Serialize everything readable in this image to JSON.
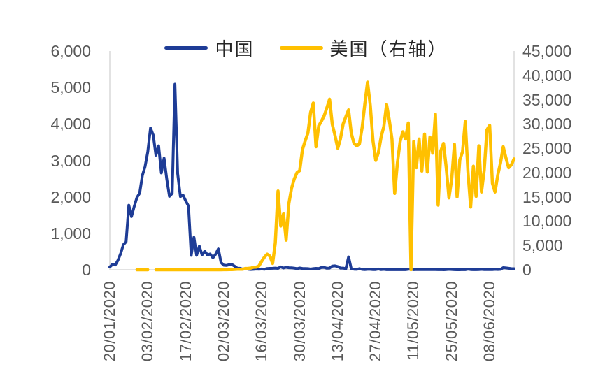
{
  "chart_data": {
    "type": "line",
    "title": "",
    "legend_position": "top",
    "grid": "off",
    "legend": [
      {
        "label": "中国",
        "color": "#1E3C96"
      },
      {
        "label": "美国（右轴）",
        "color": "#FFC000"
      }
    ],
    "style": {
      "background": "#FFFFFF",
      "axis_line_color": "#D9D9D9",
      "tick_label_color": "#595959",
      "legend_text_color": "#262626"
    },
    "left_axis": {
      "min": 0,
      "max": 6000,
      "step": 1000,
      "ticks": [
        {
          "label": "0",
          "value": 0
        },
        {
          "label": "1,000",
          "value": 1000
        },
        {
          "label": "2,000",
          "value": 2000
        },
        {
          "label": "3,000",
          "value": 3000
        },
        {
          "label": "4,000",
          "value": 4000
        },
        {
          "label": "5,000",
          "value": 5000
        },
        {
          "label": "6,000",
          "value": 6000
        }
      ]
    },
    "right_axis": {
      "min": 0,
      "max": 45000,
      "step": 5000,
      "ticks": [
        {
          "label": "0",
          "value": 0
        },
        {
          "label": "5,000",
          "value": 5000
        },
        {
          "label": "10,000",
          "value": 10000
        },
        {
          "label": "15,000",
          "value": 15000
        },
        {
          "label": "20,000",
          "value": 20000
        },
        {
          "label": "25,000",
          "value": 25000
        },
        {
          "label": "30,000",
          "value": 30000
        },
        {
          "label": "35,000",
          "value": 35000
        },
        {
          "label": "40,000",
          "value": 40000
        },
        {
          "label": "45,000",
          "value": 45000
        }
      ]
    },
    "x_axis": {
      "start_date": "20/01/2020",
      "interval": "daily",
      "ticks": [
        {
          "label": "20/01/2020",
          "day": 0
        },
        {
          "label": "03/02/2020",
          "day": 14
        },
        {
          "label": "17/02/2020",
          "day": 28
        },
        {
          "label": "02/03/2020",
          "day": 42
        },
        {
          "label": "16/03/2020",
          "day": 56
        },
        {
          "label": "30/03/2020",
          "day": 70
        },
        {
          "label": "13/04/2020",
          "day": 84
        },
        {
          "label": "27/04/2020",
          "day": 98
        },
        {
          "label": "11/05/2020",
          "day": 112
        },
        {
          "label": "25/05/2020",
          "day": 126
        },
        {
          "label": "08/06/2020",
          "day": 140
        }
      ]
    },
    "series": [
      {
        "id": "china",
        "name": "中国",
        "axis": "left",
        "color": "#1E3C96",
        "values": [
          77,
          149,
          131,
          259,
          444,
          688,
          769,
          1771,
          1459,
          1737,
          1982,
          2102,
          2590,
          2829,
          3235,
          3887,
          3694,
          3143,
          3399,
          2656,
          3062,
          2478,
          2015,
          2097,
          5090,
          2641,
          2009,
          2048,
          1886,
          1749,
          394,
          889,
          397,
          648,
          409,
          508,
          406,
          433,
          327,
          427,
          573,
          202,
          125,
          119,
          139,
          143,
          99,
          44,
          40,
          19,
          24,
          15,
          8,
          11,
          20,
          16,
          21,
          13,
          34,
          39,
          41,
          46,
          39,
          78,
          47,
          67,
          55,
          54,
          45,
          31,
          48,
          36,
          35,
          31,
          19,
          30,
          39,
          32,
          62,
          63,
          42,
          46,
          99,
          108,
          89,
          46,
          46,
          26,
          352,
          27,
          16,
          12,
          30,
          10,
          6,
          12,
          11,
          3,
          6,
          22,
          4,
          12,
          1,
          2,
          2,
          3,
          1,
          2,
          1,
          1,
          14,
          17,
          1,
          7,
          3,
          4,
          8,
          5,
          7,
          6,
          5,
          1,
          4,
          0,
          3,
          11,
          7,
          1,
          0,
          0,
          4,
          2,
          16,
          5,
          1,
          1,
          5,
          11,
          4,
          4,
          4,
          3,
          11,
          7,
          11,
          57,
          49,
          40,
          31,
          28
        ]
      },
      {
        "id": "us",
        "name": "美国（右轴）",
        "axis": "right",
        "color": "#FFC000",
        "values": [
          null,
          null,
          null,
          null,
          null,
          null,
          null,
          null,
          null,
          null,
          0,
          1,
          1,
          0,
          0,
          null,
          null,
          0,
          0,
          0,
          0,
          0,
          0,
          0,
          0,
          0,
          0,
          0,
          0,
          0,
          0,
          0,
          0,
          0,
          0,
          1,
          0,
          1,
          0,
          0,
          6,
          3,
          20,
          14,
          22,
          34,
          74,
          105,
          95,
          121,
          271,
          287,
          351,
          511,
          544,
          835,
          1750,
          2600,
          3200,
          2800,
          1300,
          5500,
          16200,
          9000,
          11500,
          6100,
          13600,
          16800,
          18700,
          20000,
          20400,
          24700,
          26500,
          28100,
          32400,
          34300,
          25300,
          29600,
          30600,
          31700,
          33300,
          35100,
          29900,
          27600,
          25000,
          26900,
          30000,
          31500,
          32900,
          28100,
          26000,
          25500,
          25900,
          29300,
          34100,
          38600,
          33800,
          26500,
          22500,
          24100,
          27300,
          29500,
          34000,
          30800,
          26900,
          15700,
          22000,
          26400,
          28400,
          26900,
          30200,
          0,
          26400,
          21000,
          26900,
          20300,
          27900,
          20100,
          27300,
          24000,
          32000,
          13300,
          24500,
          26000,
          21000,
          14800,
          18600,
          25800,
          15000,
          22600,
          24300,
          30500,
          20100,
          12900,
          21300,
          15100,
          25500,
          16000,
          20500,
          28800,
          29700,
          17800,
          16000,
          19500,
          22000,
          25300,
          23000,
          21000,
          21600,
          22800
        ]
      }
    ]
  }
}
